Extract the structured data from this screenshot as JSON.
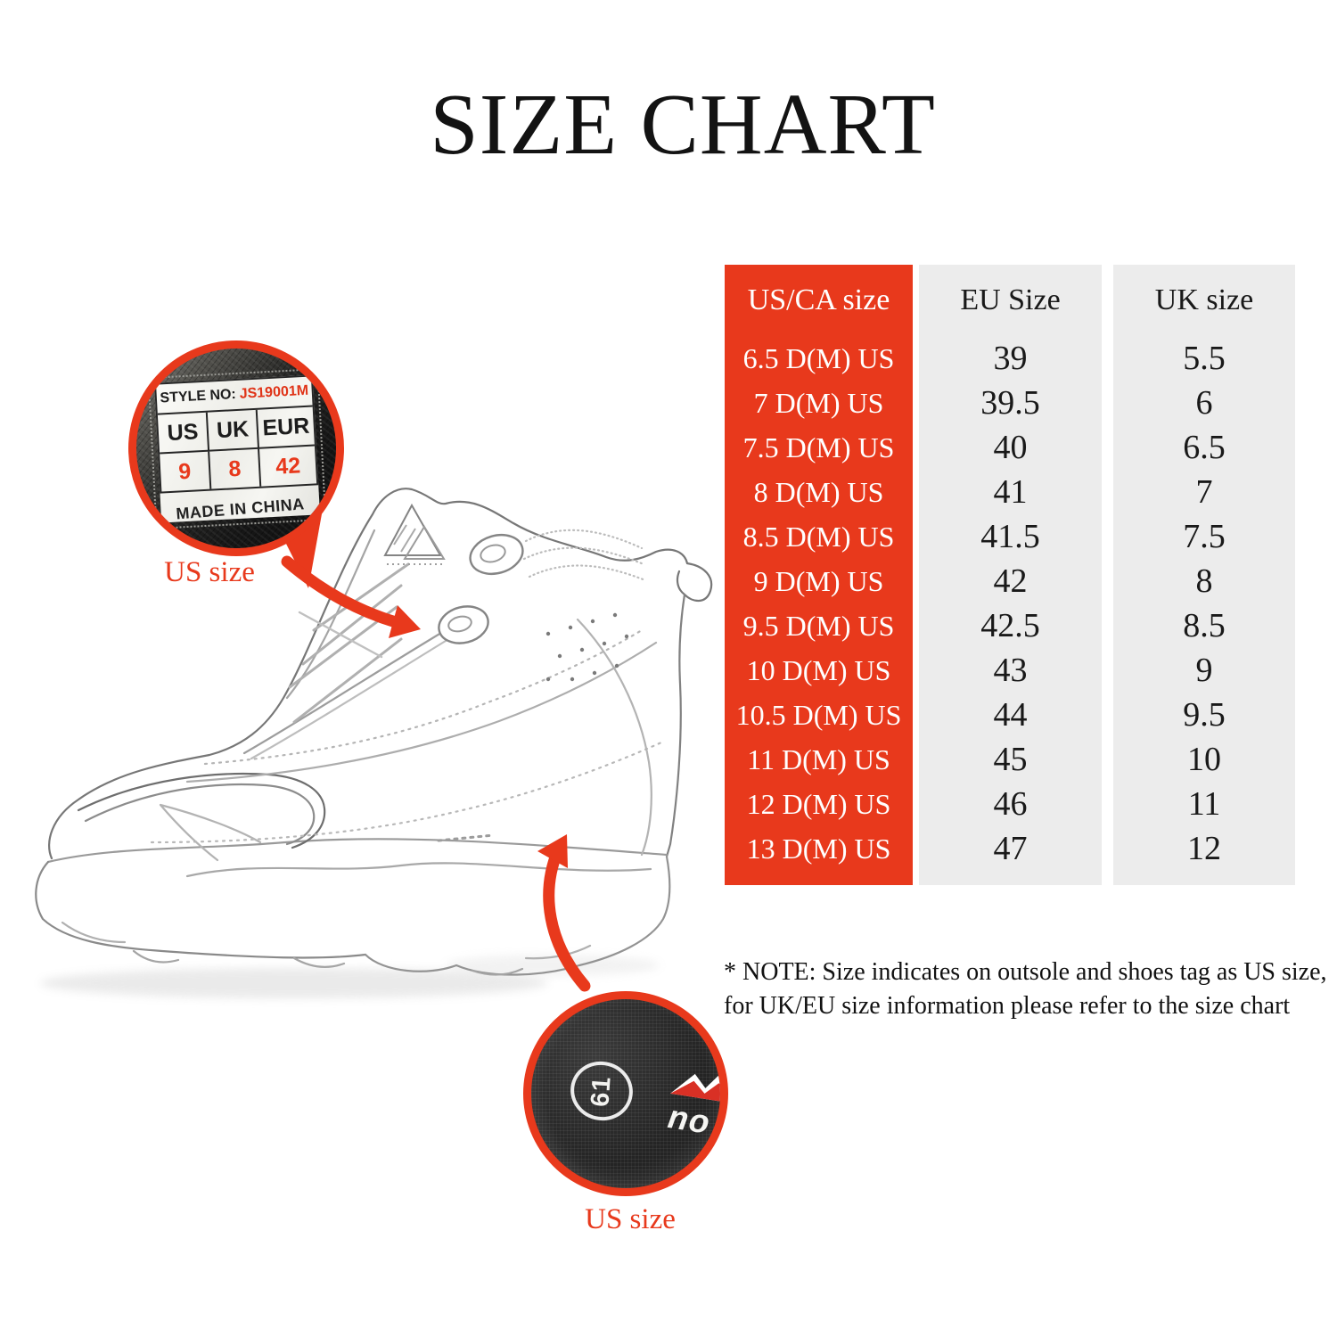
{
  "title": "SIZE CHART",
  "colors": {
    "accent_red": "#e8391c",
    "table_gray": "#ececec",
    "fabric_black": "#242424"
  },
  "size_table": {
    "columns": [
      "US/CA size",
      "EU Size",
      "UK size"
    ],
    "rows": [
      [
        "6.5 D(M) US",
        "39",
        "5.5"
      ],
      [
        "7 D(M) US",
        "39.5",
        "6"
      ],
      [
        "7.5 D(M) US",
        "40",
        "6.5"
      ],
      [
        "8 D(M) US",
        "41",
        "7"
      ],
      [
        "8.5 D(M) US",
        "41.5",
        "7.5"
      ],
      [
        "9 D(M) US",
        "42",
        "8"
      ],
      [
        "9.5 D(M) US",
        "42.5",
        "8.5"
      ],
      [
        "10 D(M) US",
        "43",
        "9"
      ],
      [
        "10.5 D(M) US",
        "44",
        "9.5"
      ],
      [
        "11 D(M) US",
        "45",
        "10"
      ],
      [
        "12 D(M) US",
        "46",
        "11"
      ],
      [
        "13 D(M) US",
        "47",
        "12"
      ]
    ]
  },
  "tag_inset": {
    "style_no_label": "STYLE NO:",
    "style_no_value": "JS19001M",
    "size_headers": [
      "US",
      "UK",
      "EUR"
    ],
    "size_values": [
      "9",
      "8",
      "42"
    ],
    "made_in": "MADE IN CHINA",
    "caption": "US size"
  },
  "outsole_inset": {
    "logo_61": "61",
    "brand_text": "no",
    "caption": "US size"
  },
  "note": {
    "line1": "* NOTE: Size indicates on outsole and shoes tag as US size,",
    "line2": "for UK/EU size information please refer to the size chart"
  }
}
